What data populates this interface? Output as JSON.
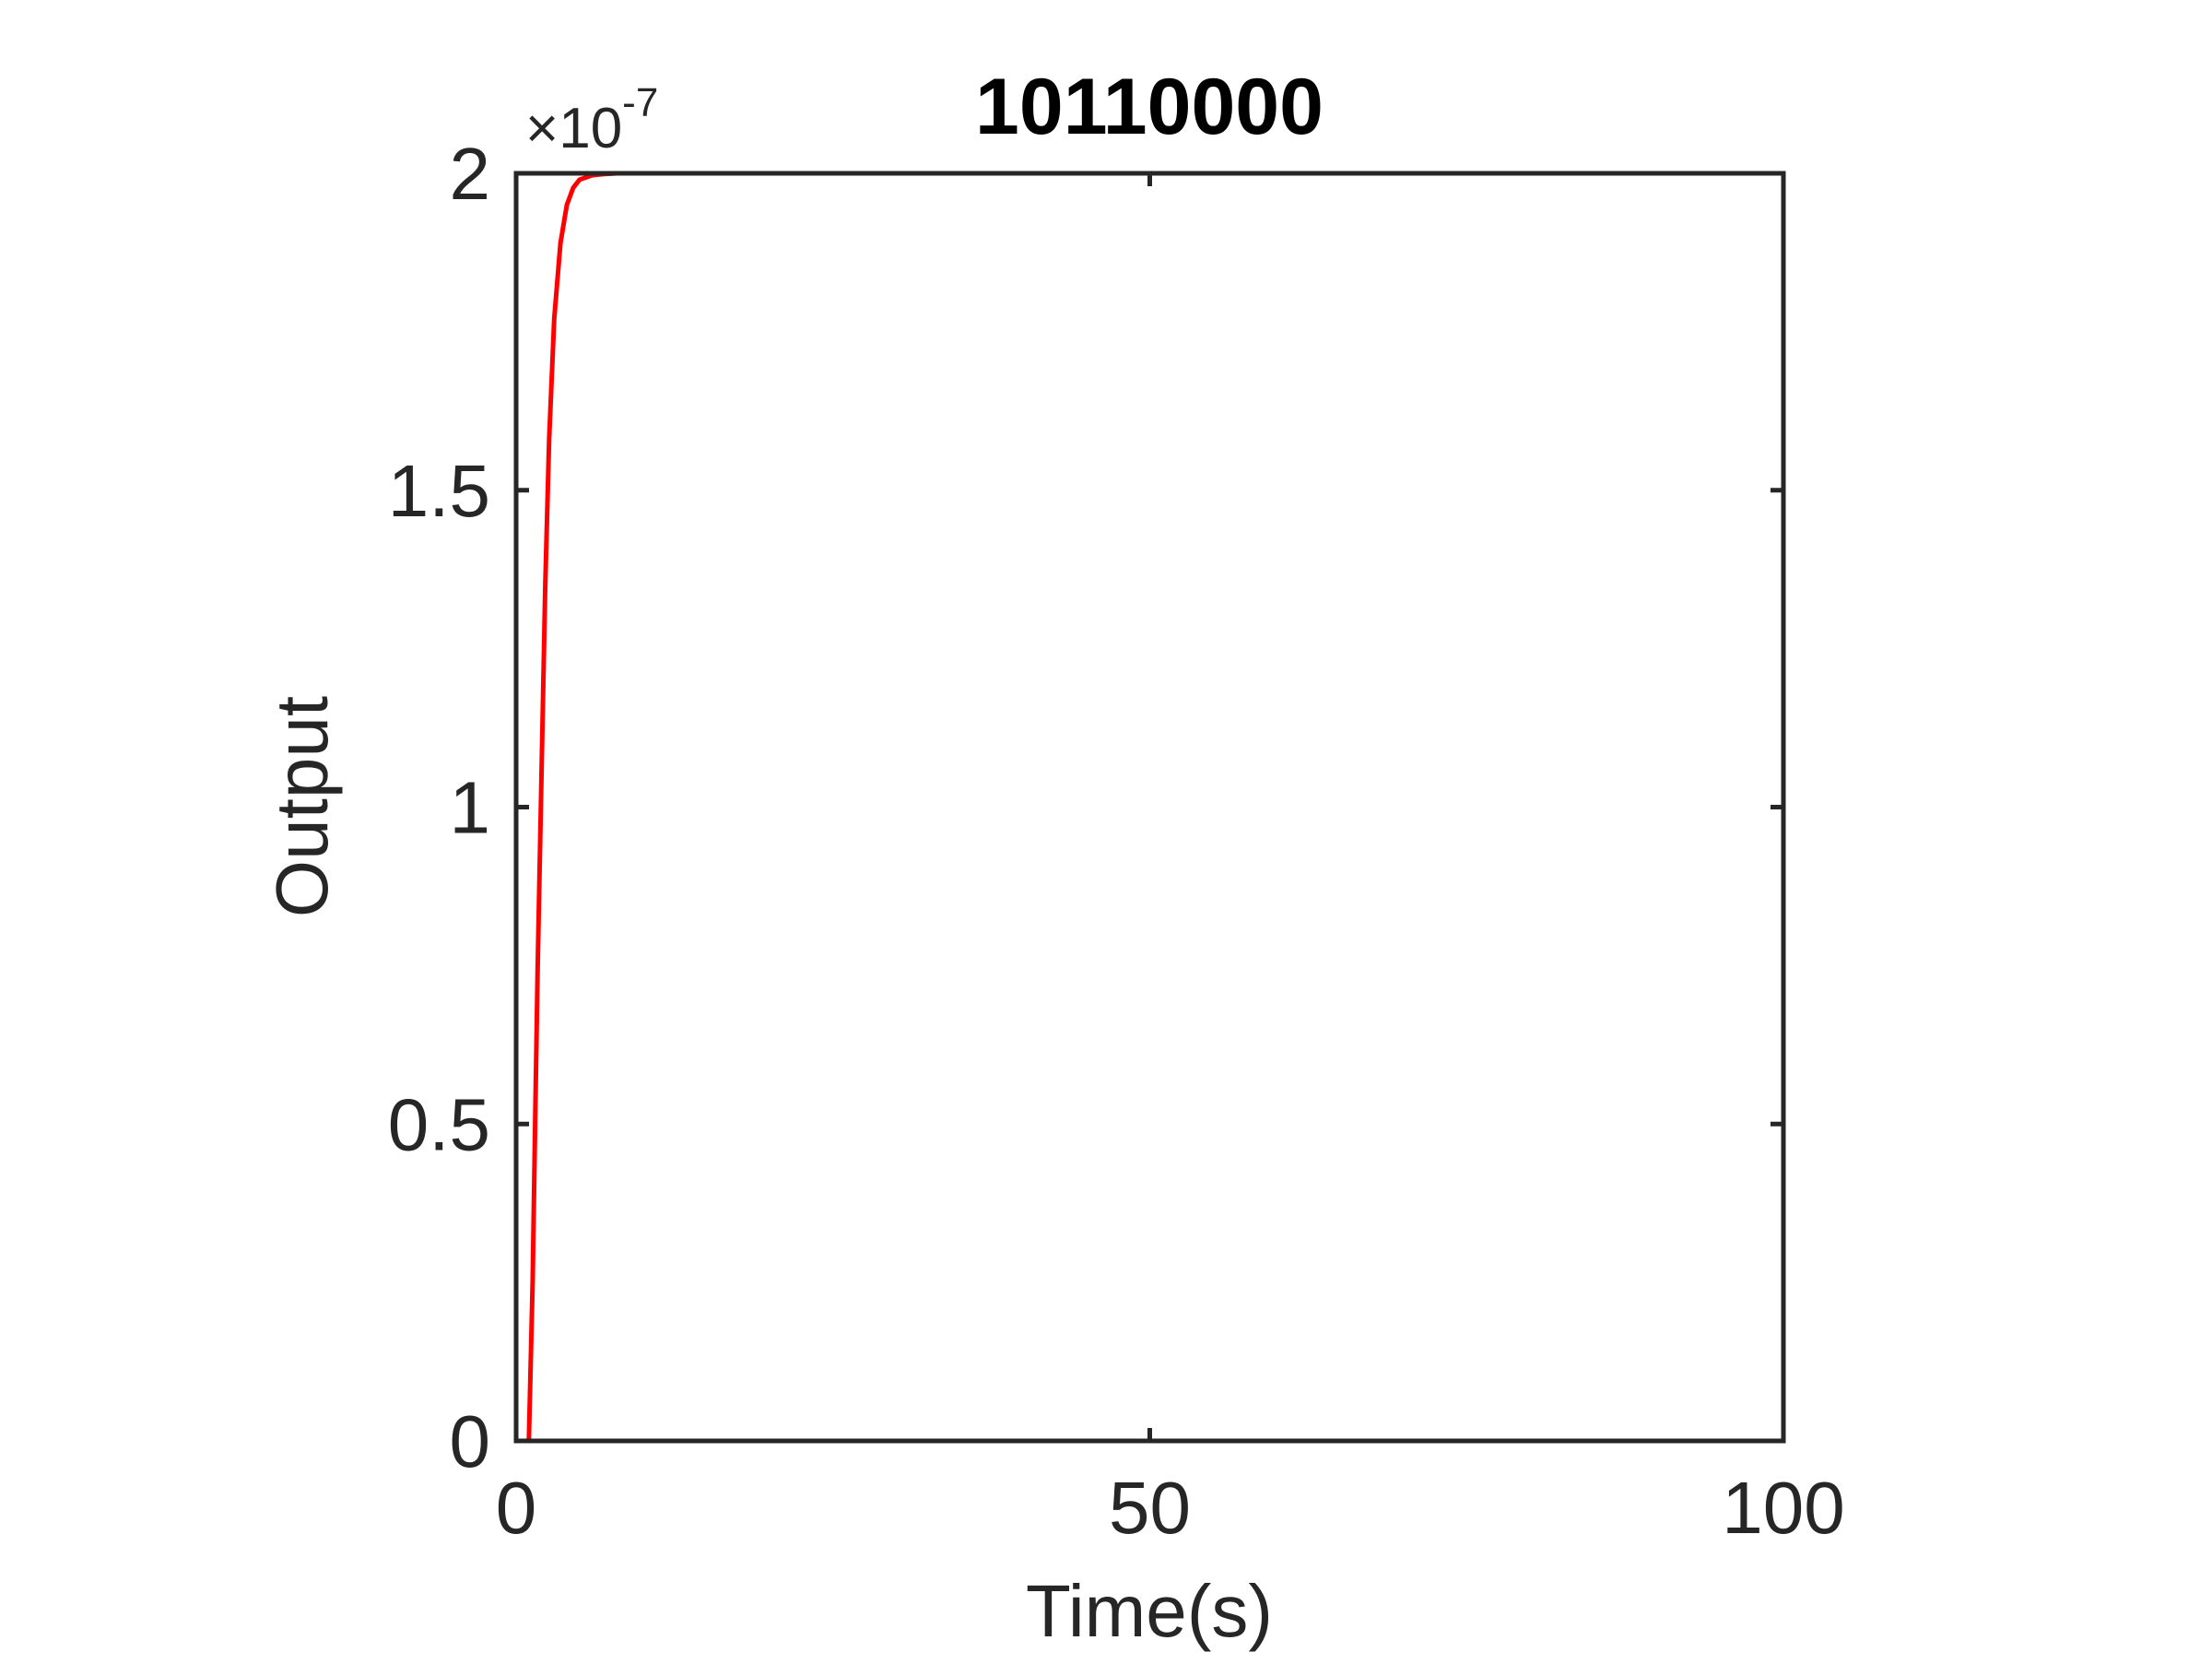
{
  "chart_data": {
    "type": "line",
    "title": "10110000",
    "xlabel": "Time(s)",
    "ylabel": "Output",
    "y_exponent_label": "×10",
    "y_exponent_power": "-7",
    "xlim": [
      0,
      100
    ],
    "ylim": [
      0,
      2
    ],
    "xticks": [
      0,
      50,
      100
    ],
    "xtick_labels": [
      "0",
      "50",
      "100"
    ],
    "yticks": [
      0,
      0.5,
      1,
      1.5,
      2
    ],
    "ytick_labels": [
      "0",
      "0.5",
      "1",
      "1.5",
      "2"
    ],
    "grid": false,
    "series": [
      {
        "color": "#ff0000",
        "x": [
          0,
          1.0,
          1.3,
          1.5,
          1.7,
          2.0,
          2.3,
          2.6,
          3.0,
          3.5,
          4.0,
          4.5,
          5.0,
          6.0,
          7.0,
          8.0,
          10.0,
          15.0,
          30.0,
          50.0,
          75.0,
          100.0
        ],
        "y": [
          0,
          0,
          0.25,
          0.5,
          0.75,
          1.05,
          1.35,
          1.58,
          1.77,
          1.89,
          1.95,
          1.977,
          1.99,
          1.997,
          1.999,
          2.0,
          2.0,
          2.0,
          2.0,
          2.0,
          2.0,
          2.0
        ]
      }
    ],
    "colors": {
      "axis": "#262626",
      "line": "#ff0000",
      "title": "#000000"
    }
  }
}
